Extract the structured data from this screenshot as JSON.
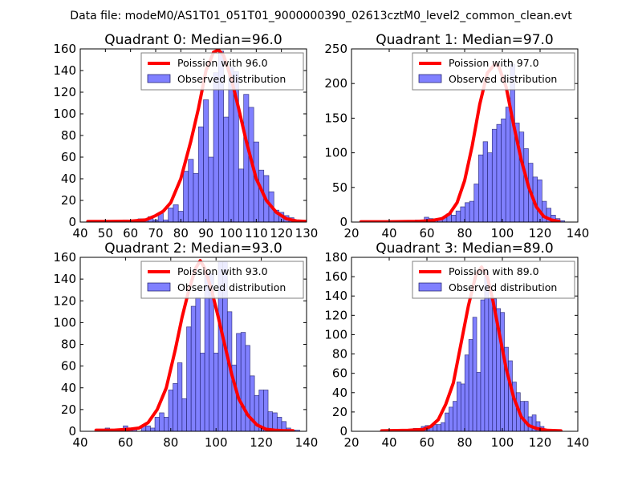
{
  "suptitle": "Data file: modeM0/AS1T01_051T01_9000000390_02613cztM0_level2_common_clean.evt",
  "colors": {
    "hist_fill": "#8080ff",
    "hist_edge": "#1a1a66",
    "poisson_line": "#ff0000",
    "legend_edge": "#808080"
  },
  "chart_data": [
    {
      "type": "bar",
      "title": "Quadrant 0: Median=96.0",
      "median": 96.0,
      "legend": [
        "Poission with 96.0",
        "Observed distribution"
      ],
      "legend_position": "top-right",
      "xlim": [
        40,
        130
      ],
      "ylim": [
        0,
        160
      ],
      "xticks": [
        40,
        50,
        60,
        70,
        80,
        90,
        100,
        110,
        120,
        130
      ],
      "yticks": [
        0,
        20,
        40,
        60,
        80,
        100,
        120,
        140,
        160
      ],
      "bin_start": 43,
      "bin_width": 2,
      "values": [
        1,
        0,
        0,
        0,
        1,
        0,
        0,
        2,
        0,
        1,
        3,
        3,
        5,
        2,
        8,
        2,
        13,
        16,
        10,
        47,
        58,
        45,
        88,
        113,
        60,
        138,
        158,
        97,
        143,
        139,
        49,
        118,
        106,
        74,
        48,
        43,
        28,
        11,
        9,
        6,
        4,
        2,
        1,
        0,
        0
      ],
      "poisson_x": [
        43,
        50,
        60,
        66,
        70,
        73,
        76,
        80,
        84,
        87,
        90,
        93,
        95,
        97,
        100,
        103,
        106,
        110,
        114,
        118,
        122,
        126,
        130
      ],
      "poisson_y": [
        0.5,
        0.5,
        0.8,
        2,
        6,
        10,
        18,
        40,
        75,
        105,
        140,
        157,
        159,
        154,
        133,
        105,
        75,
        40,
        20,
        9,
        3,
        1,
        0.5
      ]
    },
    {
      "type": "bar",
      "title": "Quadrant 1: Median=97.0",
      "median": 97.0,
      "legend": [
        "Poission with 97.0",
        "Observed distribution"
      ],
      "legend_position": "top-right",
      "xlim": [
        20,
        140
      ],
      "ylim": [
        0,
        250
      ],
      "xticks": [
        20,
        40,
        60,
        80,
        100,
        120,
        140
      ],
      "yticks": [
        0,
        50,
        100,
        150,
        200,
        250
      ],
      "bin_start": 25,
      "bin_width": 2.4,
      "values": [
        1,
        1,
        0,
        0,
        0,
        0,
        0,
        0,
        0,
        0,
        0,
        0,
        3,
        2,
        7,
        5,
        3,
        5,
        6,
        12,
        10,
        16,
        22,
        28,
        30,
        55,
        97,
        116,
        100,
        134,
        141,
        149,
        166,
        228,
        143,
        130,
        106,
        85,
        65,
        61,
        30,
        20,
        10,
        5,
        2,
        0
      ],
      "poisson_x": [
        25,
        40,
        55,
        62,
        68,
        72,
        76,
        80,
        84,
        88,
        92,
        96,
        98,
        102,
        106,
        110,
        114,
        118,
        122,
        126,
        130
      ],
      "poisson_y": [
        0.5,
        0.5,
        1,
        2,
        5,
        12,
        28,
        60,
        110,
        170,
        215,
        228,
        225,
        195,
        140,
        90,
        50,
        22,
        8,
        3,
        1
      ]
    },
    {
      "type": "bar",
      "title": "Quadrant 2: Median=93.0",
      "median": 93.0,
      "legend": [
        "Poission with 93.0",
        "Observed distribution"
      ],
      "legend_position": "top-right",
      "xlim": [
        40,
        140
      ],
      "ylim": [
        0,
        160
      ],
      "xticks": [
        40,
        60,
        80,
        100,
        120,
        140
      ],
      "yticks": [
        0,
        20,
        40,
        60,
        80,
        100,
        120,
        140,
        160
      ],
      "bin_start": 47,
      "bin_width": 2,
      "values": [
        0,
        0,
        3,
        0,
        0,
        0,
        5,
        3,
        3,
        0,
        5,
        5,
        3,
        13,
        17,
        13,
        38,
        44,
        63,
        30,
        96,
        115,
        123,
        72,
        146,
        145,
        72,
        156,
        156,
        110,
        61,
        90,
        91,
        79,
        51,
        33,
        38,
        38,
        18,
        17,
        13,
        9,
        3,
        1,
        1,
        0,
        0
      ],
      "poisson_x": [
        47,
        55,
        62,
        66,
        70,
        74,
        78,
        82,
        85,
        88,
        91,
        93,
        95,
        98,
        101,
        104,
        107,
        110,
        114,
        118,
        122,
        126,
        130,
        134
      ],
      "poisson_y": [
        1,
        1,
        2,
        3,
        8,
        20,
        40,
        75,
        105,
        130,
        150,
        157,
        150,
        130,
        105,
        78,
        52,
        30,
        15,
        6,
        2,
        1,
        0.5,
        0.5
      ]
    },
    {
      "type": "bar",
      "title": "Quadrant 3: Median=89.0",
      "median": 89.0,
      "legend": [
        "Poission with 89.0",
        "Observed distribution"
      ],
      "legend_position": "top-right",
      "xlim": [
        20,
        140
      ],
      "ylim": [
        0,
        180
      ],
      "xticks": [
        20,
        40,
        60,
        80,
        100,
        120,
        140
      ],
      "yticks": [
        0,
        20,
        40,
        60,
        80,
        100,
        120,
        140,
        160,
        180
      ],
      "bin_start": 36,
      "bin_width": 2.1,
      "values": [
        0,
        0,
        0,
        0,
        0,
        0,
        0,
        0,
        3,
        2,
        5,
        6,
        5,
        7,
        7,
        9,
        19,
        25,
        31,
        51,
        49,
        79,
        95,
        118,
        61,
        136,
        165,
        138,
        137,
        127,
        123,
        87,
        73,
        51,
        40,
        31,
        31,
        15,
        17,
        10,
        5,
        2,
        1,
        1,
        0
      ],
      "poisson_x": [
        36,
        50,
        58,
        62,
        66,
        70,
        74,
        78,
        82,
        86,
        89,
        92,
        95,
        98,
        102,
        106,
        110,
        114,
        118,
        124,
        131
      ],
      "poisson_y": [
        0.5,
        1,
        2,
        5,
        12,
        28,
        50,
        90,
        130,
        162,
        170,
        160,
        135,
        105,
        65,
        35,
        15,
        6,
        3,
        1,
        0.5
      ]
    }
  ]
}
